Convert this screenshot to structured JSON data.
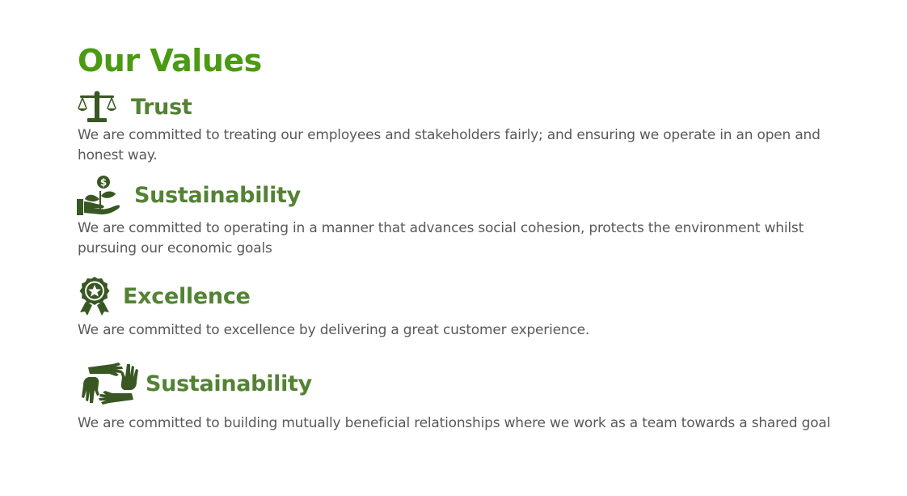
{
  "page": {
    "title": "Our Values"
  },
  "colors": {
    "title": "#4a9a12",
    "heading": "#548235",
    "icon": "#385723",
    "body_text": "#595959"
  },
  "values": [
    {
      "icon": "scales-icon",
      "heading": "Trust",
      "description": "We are committed to treating our employees and stakeholders fairly; and ensuring we operate in an open and honest way."
    },
    {
      "icon": "hand-plant-money-icon",
      "heading": "Sustainability",
      "description": "We are committed to operating in a manner that advances social cohesion, protects the environment whilst pursuing our economic goals"
    },
    {
      "icon": "award-ribbon-icon",
      "heading": "Excellence",
      "description": "We are committed to excellence by delivering a great customer experience."
    },
    {
      "icon": "teamwork-hands-icon",
      "heading": "Sustainability",
      "description": "We are committed to building mutually beneficial relationships where we work as a team towards a shared goal"
    }
  ]
}
